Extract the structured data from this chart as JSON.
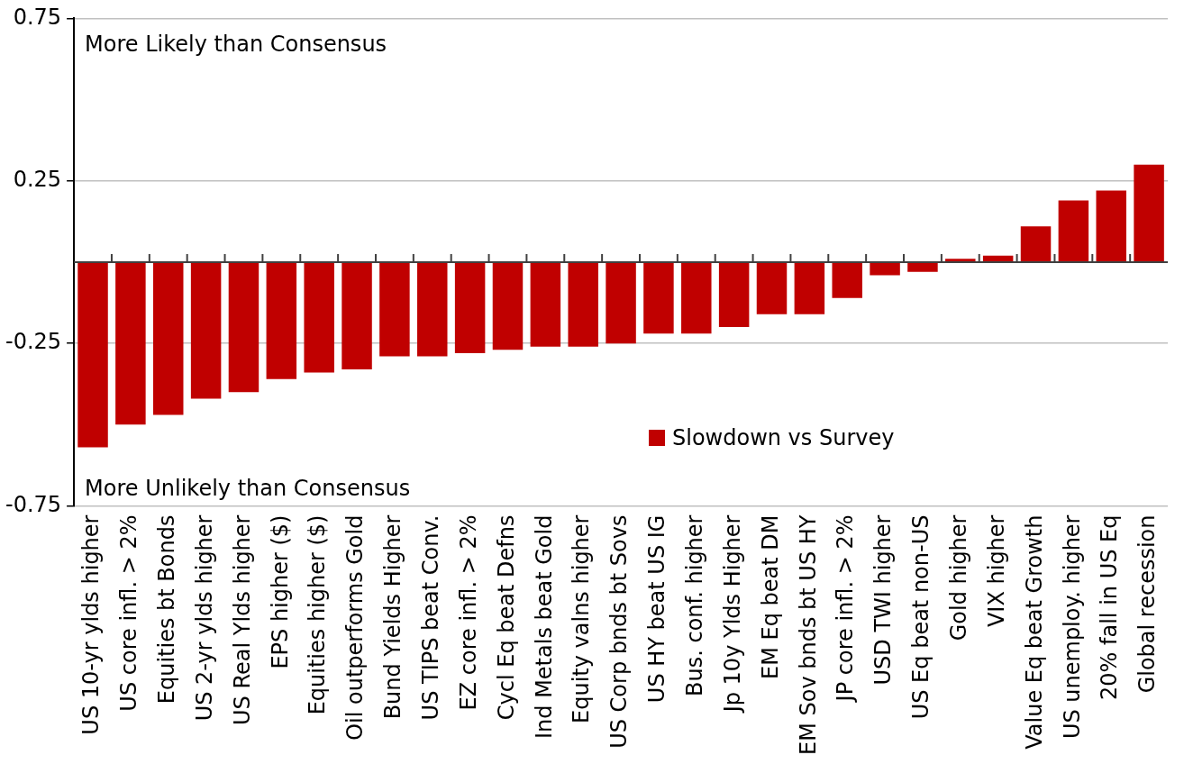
{
  "chart_data": {
    "type": "bar",
    "categories": [
      "US 10-yr ylds higher",
      "US core infl. > 2%",
      "Equities bt Bonds",
      "US 2-yr ylds higher",
      "US Real Ylds higher",
      "EPS higher ($)",
      "Equities higher ($)",
      "Oil outperforms Gold",
      "Bund Yields Higher",
      "US TIPS beat Conv.",
      "EZ core infl. > 2%",
      "Cycl Eq beat Defns",
      "Ind Metals beat Gold",
      "Equity valns higher",
      "US Corp bnds bt Sovs",
      "US HY beat US IG",
      "Bus. conf. higher",
      "Jp 10y Ylds Higher",
      "EM Eq beat DM",
      "EM Sov bnds bt US HY",
      "JP core infl. > 2%",
      "USD TWI higher",
      "US Eq beat non-US",
      "Gold higher",
      "VIX higher",
      "Value Eq beat Growth",
      "US unemploy. higher",
      "20% fall in US Eq",
      "Global recession"
    ],
    "series": [
      {
        "name": "Slowdown vs Survey",
        "color": "#c00000",
        "values": [
          -0.57,
          -0.5,
          -0.47,
          -0.42,
          -0.4,
          -0.36,
          -0.34,
          -0.33,
          -0.29,
          -0.29,
          -0.28,
          -0.27,
          -0.26,
          -0.26,
          -0.25,
          -0.22,
          -0.22,
          -0.2,
          -0.16,
          -0.16,
          -0.11,
          -0.04,
          -0.03,
          0.01,
          0.02,
          0.11,
          0.19,
          0.22,
          0.3
        ]
      }
    ],
    "ylim": [
      -0.75,
      0.75
    ],
    "yticks": [
      -0.75,
      -0.25,
      0.25,
      0.75
    ],
    "grid": "y",
    "legend": "bottom",
    "annotations": [
      "More Likely than Consensus",
      "More Unlikely than Consensus"
    ]
  }
}
